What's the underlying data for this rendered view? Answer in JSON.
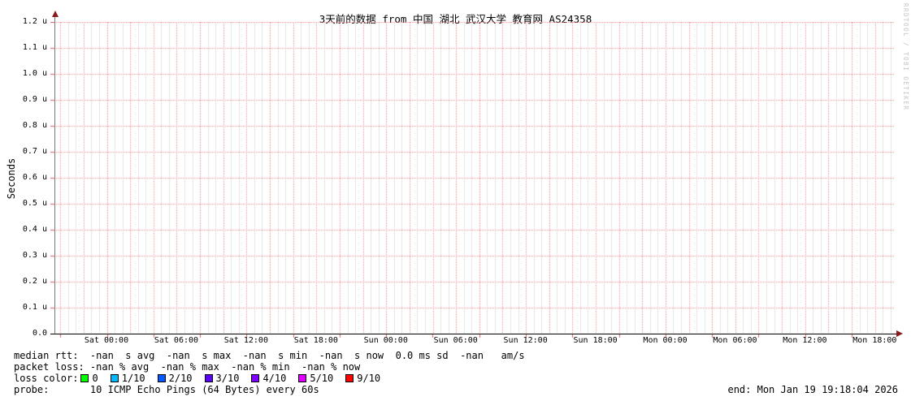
{
  "title": "3天前的数据 from 中国 湖北 武汉大学 教育网 AS24358",
  "watermark": "RRDTOOL / TOBI OETIKER",
  "chart_data": {
    "type": "line",
    "title": "3天前的数据 from 中国 湖北 武汉大学 教育网 AS24358",
    "ylabel": "Seconds",
    "xlabel": "",
    "ylim": [
      0.0,
      1.2e-06
    ],
    "y_tick_labels": [
      "1.2 u",
      "1.1 u",
      "1.0 u",
      "0.9 u",
      "0.8 u",
      "0.7 u",
      "0.6 u",
      "0.5 u",
      "0.4 u",
      "0.3 u",
      "0.2 u",
      "0.1 u",
      "0.0"
    ],
    "x_tick_labels": [
      "Sat 00:00",
      "Sat 06:00",
      "Sat 12:00",
      "Sat 18:00",
      "Sun 00:00",
      "Sun 06:00",
      "Sun 12:00",
      "Sun 18:00",
      "Mon 00:00",
      "Mon 06:00",
      "Mon 12:00",
      "Mon 18:00"
    ],
    "series": [],
    "grid": {
      "major_color": "#ee8a8a",
      "minor_color": "#c9c9c9",
      "style": "dotted"
    },
    "legend_position": "below"
  },
  "stats": {
    "median_rtt_line": "median rtt:  -nan  s avg  -nan  s max  -nan  s min  -nan  s now  0.0 ms sd  -nan   am/s",
    "packet_loss_line": "packet loss: -nan % avg  -nan % max  -nan % min  -nan % now",
    "loss_color_label": "loss color:",
    "loss_colors": [
      {
        "label": "0",
        "color": "#00ff00"
      },
      {
        "label": "1/10",
        "color": "#00b8ff"
      },
      {
        "label": "2/10",
        "color": "#0059ff"
      },
      {
        "label": "3/10",
        "color": "#5e00ff"
      },
      {
        "label": "4/10",
        "color": "#7e00ff"
      },
      {
        "label": "5/10",
        "color": "#dd00ff"
      },
      {
        "label": "9/10",
        "color": "#ff0000"
      }
    ],
    "probe_line": "probe:       10 ICMP Echo Pings (64 Bytes) every 60s",
    "end_line": "end: Mon Jan 19 19:18:04 2026"
  }
}
